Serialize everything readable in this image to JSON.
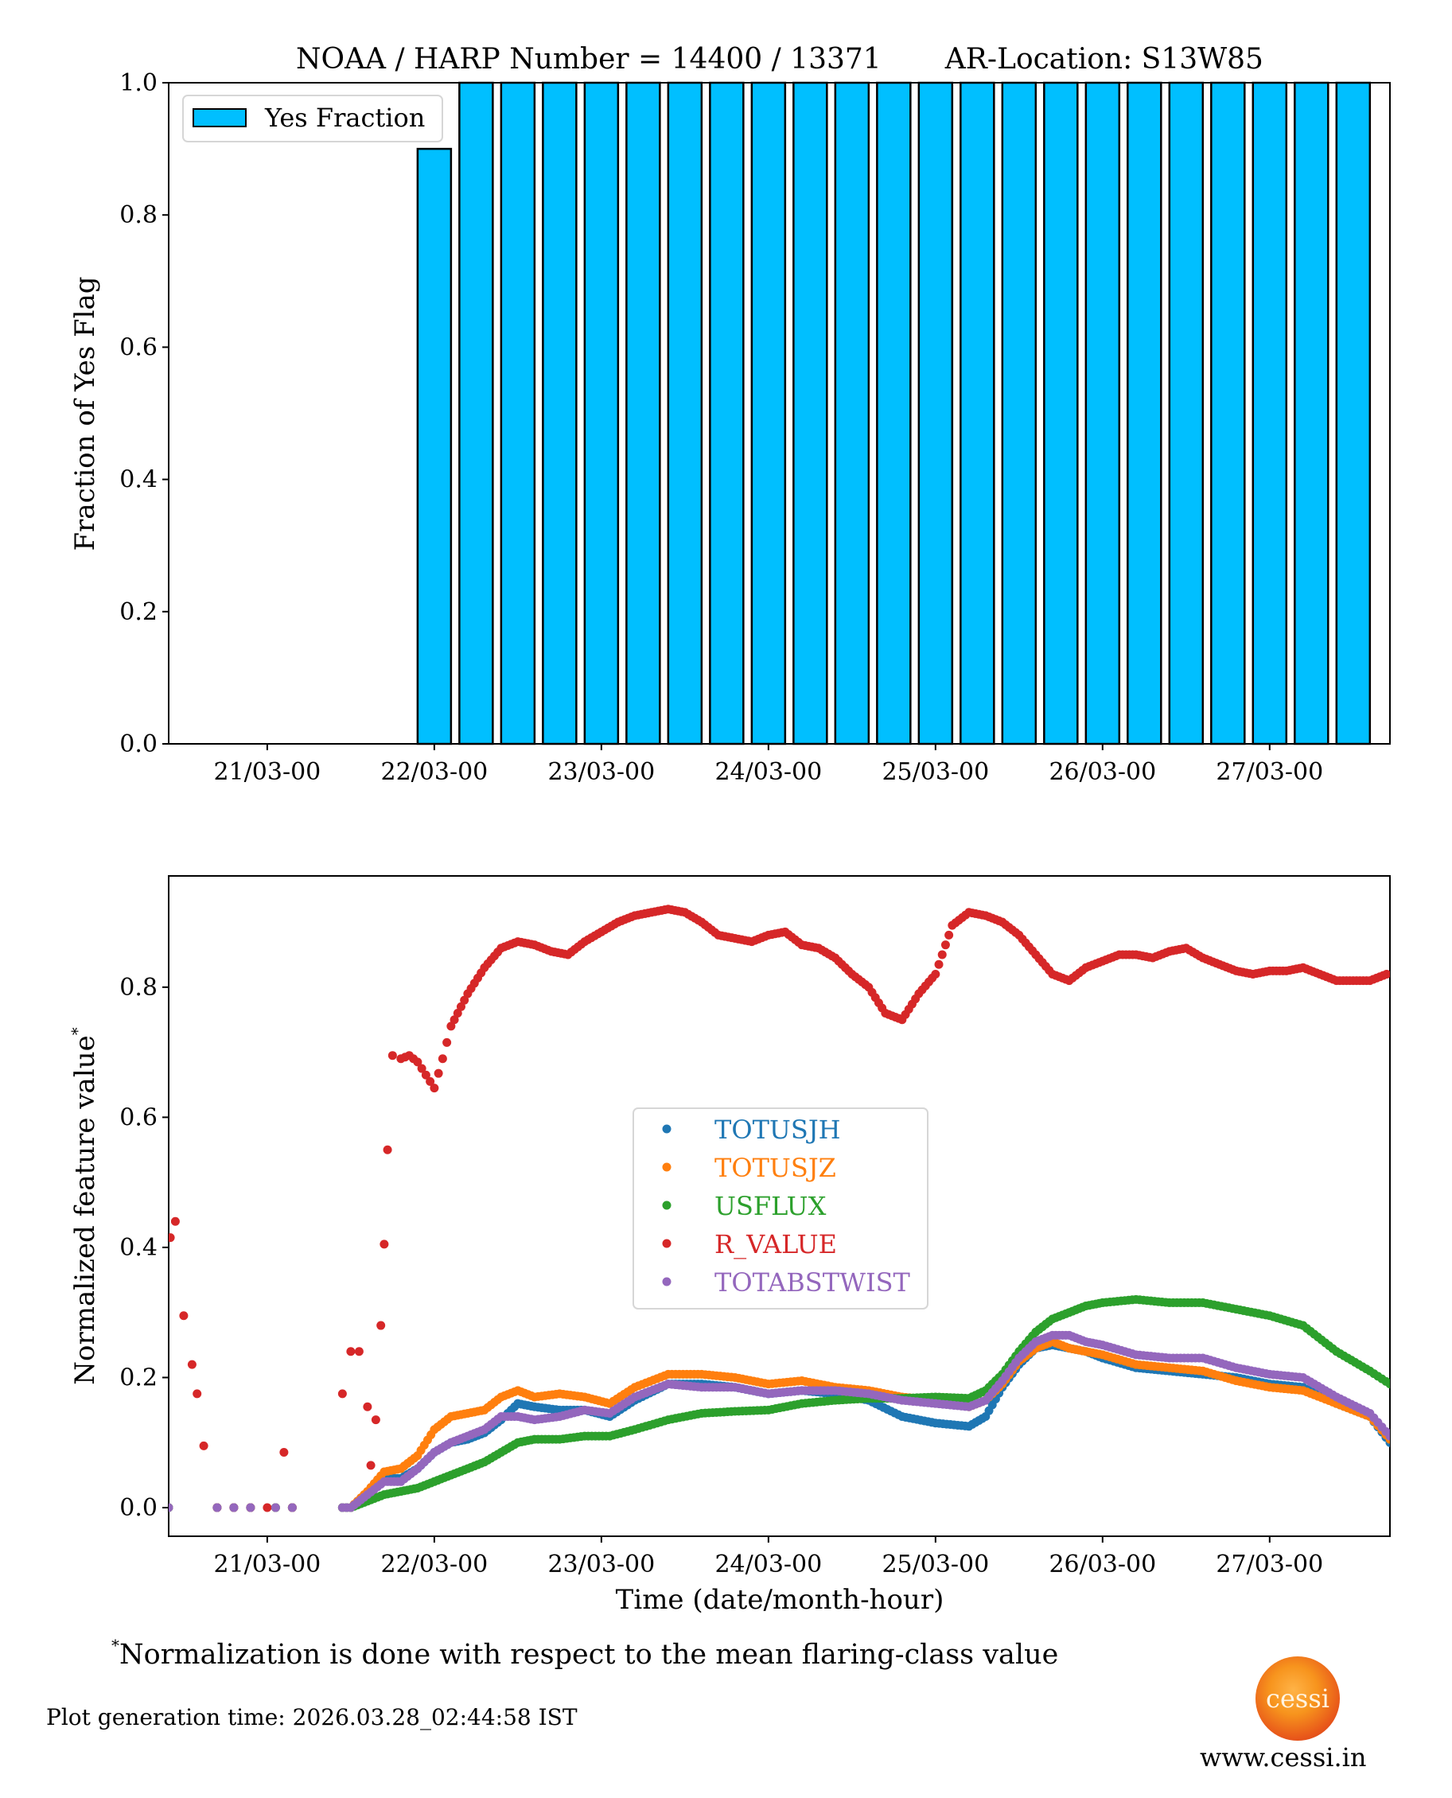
{
  "chart_data": [
    {
      "type": "bar",
      "title": "NOAA / HARP Number = 14400 / 13371       AR-Location: S13W85",
      "xlabel": "",
      "ylabel": "Fraction of Yes Flag",
      "ylim": [
        0.0,
        1.0
      ],
      "xlim_days": [
        -0.59,
        6.72
      ],
      "x_reference": "21/03-00 = day 0",
      "yticks": [
        "0.0",
        "0.2",
        "0.4",
        "0.6",
        "0.8",
        "1.0"
      ],
      "ytick_values": [
        0.0,
        0.2,
        0.4,
        0.6,
        0.8,
        1.0
      ],
      "xticks": [
        "21/03-00",
        "22/03-00",
        "23/03-00",
        "24/03-00",
        "25/03-00",
        "26/03-00",
        "27/03-00"
      ],
      "xtick_days": [
        0,
        1,
        2,
        3,
        4,
        5,
        6
      ],
      "bar_width_days": 0.2,
      "bar_x_days": [
        1.0,
        1.25,
        1.5,
        1.75,
        2.0,
        2.25,
        2.5,
        2.75,
        3.0,
        3.25,
        3.5,
        3.75,
        4.0,
        4.25,
        4.5,
        4.75,
        5.0,
        5.25,
        5.5,
        5.75,
        6.0,
        6.25,
        6.5
      ],
      "values": [
        0.9,
        1.0,
        1.0,
        1.0,
        1.0,
        1.0,
        1.0,
        1.0,
        1.0,
        1.0,
        1.0,
        1.0,
        1.0,
        1.0,
        1.0,
        1.0,
        1.0,
        1.0,
        1.0,
        1.0,
        1.0,
        1.0,
        1.0
      ],
      "legend": {
        "label": "Yes Fraction",
        "placement": "top-left"
      },
      "colors": {
        "bar": "#00bfff",
        "edge": "#000000"
      }
    },
    {
      "type": "scatter",
      "xlabel": "Time (date/month-hour)",
      "ylabel": "Normalized feature value*",
      "ylim": [
        -0.044,
        0.971
      ],
      "xlim_days": [
        -0.59,
        6.72
      ],
      "yticks": [
        "0.0",
        "0.2",
        "0.4",
        "0.6",
        "0.8"
      ],
      "ytick_values": [
        0.0,
        0.2,
        0.4,
        0.6,
        0.8
      ],
      "xticks": [
        "21/03-00",
        "22/03-00",
        "23/03-00",
        "24/03-00",
        "25/03-00",
        "26/03-00",
        "27/03-00"
      ],
      "xtick_days": [
        0,
        1,
        2,
        3,
        4,
        5,
        6
      ],
      "legend_placement": "center",
      "series": [
        {
          "name": "TOTUSJH",
          "color": "#1f77b4",
          "x": [
            -0.59,
            -0.3,
            -0.2,
            -0.1,
            0.05,
            0.15,
            0.45,
            0.5,
            0.6,
            0.7,
            0.8,
            0.9,
            1.0,
            1.1,
            1.2,
            1.3,
            1.4,
            1.5,
            1.6,
            1.75,
            1.9,
            2.05,
            2.2,
            2.4,
            2.6,
            2.8,
            3.0,
            3.2,
            3.4,
            3.6,
            3.8,
            4.0,
            4.2,
            4.3,
            4.4,
            4.5,
            4.6,
            4.7,
            4.8,
            4.9,
            5.0,
            5.2,
            5.4,
            5.6,
            5.8,
            6.0,
            6.2,
            6.4,
            6.6,
            6.72
          ],
          "y": [
            0.0,
            0.0,
            0.0,
            0.0,
            0.0,
            0.0,
            0.0,
            0.0,
            0.02,
            0.045,
            0.045,
            0.06,
            0.085,
            0.1,
            0.105,
            0.115,
            0.135,
            0.16,
            0.155,
            0.15,
            0.15,
            0.14,
            0.165,
            0.19,
            0.19,
            0.185,
            0.175,
            0.18,
            0.175,
            0.165,
            0.14,
            0.13,
            0.125,
            0.14,
            0.185,
            0.22,
            0.245,
            0.25,
            0.245,
            0.24,
            0.23,
            0.215,
            0.21,
            0.205,
            0.2,
            0.19,
            0.185,
            0.16,
            0.14,
            0.1
          ]
        },
        {
          "name": "TOTUSJZ",
          "color": "#ff7f0e",
          "x": [
            -0.59,
            -0.3,
            -0.2,
            -0.1,
            0.05,
            0.15,
            0.45,
            0.5,
            0.6,
            0.7,
            0.8,
            0.9,
            1.0,
            1.1,
            1.2,
            1.3,
            1.4,
            1.5,
            1.6,
            1.75,
            1.9,
            2.05,
            2.2,
            2.4,
            2.6,
            2.8,
            3.0,
            3.2,
            3.4,
            3.6,
            3.8,
            4.0,
            4.2,
            4.3,
            4.4,
            4.5,
            4.6,
            4.7,
            4.8,
            4.9,
            5.0,
            5.2,
            5.4,
            5.6,
            5.8,
            6.0,
            6.2,
            6.4,
            6.6,
            6.72
          ],
          "y": [
            0.0,
            0.0,
            0.0,
            0.0,
            0.0,
            0.0,
            0.0,
            0.0,
            0.025,
            0.055,
            0.06,
            0.08,
            0.12,
            0.14,
            0.145,
            0.15,
            0.17,
            0.18,
            0.17,
            0.175,
            0.17,
            0.16,
            0.185,
            0.205,
            0.205,
            0.2,
            0.19,
            0.195,
            0.185,
            0.18,
            0.17,
            0.165,
            0.155,
            0.165,
            0.19,
            0.225,
            0.245,
            0.255,
            0.245,
            0.24,
            0.235,
            0.22,
            0.215,
            0.21,
            0.195,
            0.185,
            0.18,
            0.16,
            0.14,
            0.105
          ]
        },
        {
          "name": "USFLUX",
          "color": "#2ca02c",
          "x": [
            -0.59,
            -0.3,
            -0.2,
            -0.1,
            0.05,
            0.15,
            0.45,
            0.5,
            0.6,
            0.7,
            0.8,
            0.9,
            1.0,
            1.1,
            1.2,
            1.3,
            1.4,
            1.5,
            1.6,
            1.75,
            1.9,
            2.05,
            2.2,
            2.4,
            2.6,
            2.8,
            3.0,
            3.2,
            3.4,
            3.6,
            3.8,
            4.0,
            4.2,
            4.3,
            4.4,
            4.5,
            4.6,
            4.7,
            4.8,
            4.9,
            5.0,
            5.2,
            5.4,
            5.6,
            5.8,
            6.0,
            6.2,
            6.4,
            6.6,
            6.72
          ],
          "y": [
            0.0,
            0.0,
            0.0,
            0.0,
            0.0,
            0.0,
            0.0,
            0.0,
            0.01,
            0.02,
            0.025,
            0.03,
            0.04,
            0.05,
            0.06,
            0.07,
            0.085,
            0.1,
            0.105,
            0.105,
            0.11,
            0.11,
            0.12,
            0.135,
            0.145,
            0.148,
            0.15,
            0.16,
            0.165,
            0.168,
            0.168,
            0.17,
            0.168,
            0.18,
            0.205,
            0.24,
            0.27,
            0.29,
            0.3,
            0.31,
            0.315,
            0.32,
            0.315,
            0.315,
            0.305,
            0.295,
            0.28,
            0.24,
            0.21,
            0.19
          ]
        },
        {
          "name": "R_VALUE",
          "color": "#d62728",
          "x": [
            -0.58,
            -0.55,
            -0.5,
            -0.45,
            -0.42,
            -0.38,
            -0.3,
            -0.2,
            -0.1,
            0.0,
            0.1,
            0.15,
            0.45,
            0.5,
            0.55,
            0.6,
            0.62,
            0.65,
            0.68,
            0.7,
            0.72,
            0.75,
            0.8,
            0.85,
            0.9,
            0.95,
            1.0,
            1.05,
            1.1,
            1.2,
            1.3,
            1.4,
            1.5,
            1.6,
            1.7,
            1.8,
            1.9,
            2.0,
            2.1,
            2.2,
            2.3,
            2.4,
            2.5,
            2.6,
            2.7,
            2.8,
            2.9,
            3.0,
            3.1,
            3.2,
            3.3,
            3.4,
            3.5,
            3.6,
            3.7,
            3.8,
            3.9,
            4.0,
            4.1,
            4.2,
            4.3,
            4.4,
            4.5,
            4.6,
            4.7,
            4.8,
            4.9,
            5.0,
            5.1,
            5.2,
            5.3,
            5.4,
            5.5,
            5.6,
            5.7,
            5.8,
            5.9,
            6.0,
            6.1,
            6.2,
            6.3,
            6.4,
            6.5,
            6.6,
            6.7
          ],
          "y": [
            0.415,
            0.44,
            0.295,
            0.22,
            0.175,
            0.095,
            0.0,
            0.0,
            0.0,
            0.0,
            0.085,
            0.0,
            0.175,
            0.24,
            0.24,
            0.155,
            0.065,
            0.135,
            0.28,
            0.405,
            0.55,
            0.695,
            0.69,
            0.695,
            0.685,
            0.665,
            0.645,
            0.69,
            0.74,
            0.79,
            0.83,
            0.86,
            0.87,
            0.865,
            0.855,
            0.85,
            0.87,
            0.885,
            0.9,
            0.91,
            0.915,
            0.92,
            0.915,
            0.9,
            0.88,
            0.875,
            0.87,
            0.88,
            0.885,
            0.865,
            0.86,
            0.845,
            0.82,
            0.8,
            0.76,
            0.75,
            0.79,
            0.82,
            0.895,
            0.915,
            0.91,
            0.9,
            0.88,
            0.85,
            0.82,
            0.81,
            0.83,
            0.84,
            0.85,
            0.85,
            0.845,
            0.855,
            0.86,
            0.845,
            0.835,
            0.825,
            0.82,
            0.825,
            0.825,
            0.83,
            0.82,
            0.81,
            0.81,
            0.81,
            0.82
          ]
        },
        {
          "name": "TOTABSTWIST",
          "color": "#9467bd",
          "x": [
            -0.59,
            -0.3,
            -0.2,
            -0.1,
            0.05,
            0.15,
            0.45,
            0.5,
            0.6,
            0.7,
            0.8,
            0.9,
            1.0,
            1.1,
            1.2,
            1.3,
            1.4,
            1.5,
            1.6,
            1.75,
            1.9,
            2.05,
            2.2,
            2.4,
            2.6,
            2.8,
            3.0,
            3.2,
            3.4,
            3.6,
            3.8,
            4.0,
            4.2,
            4.3,
            4.4,
            4.5,
            4.6,
            4.7,
            4.8,
            4.9,
            5.0,
            5.2,
            5.4,
            5.6,
            5.8,
            6.0,
            6.2,
            6.4,
            6.6,
            6.72
          ],
          "y": [
            0.0,
            0.0,
            0.0,
            0.0,
            0.0,
            0.0,
            0.0,
            0.0,
            0.02,
            0.04,
            0.04,
            0.06,
            0.085,
            0.1,
            0.11,
            0.12,
            0.14,
            0.14,
            0.135,
            0.14,
            0.15,
            0.145,
            0.17,
            0.19,
            0.185,
            0.185,
            0.175,
            0.18,
            0.18,
            0.175,
            0.165,
            0.16,
            0.155,
            0.165,
            0.195,
            0.23,
            0.255,
            0.265,
            0.265,
            0.255,
            0.25,
            0.235,
            0.23,
            0.23,
            0.215,
            0.205,
            0.2,
            0.17,
            0.145,
            0.11
          ]
        }
      ]
    }
  ],
  "footer": {
    "footnote_mark": "*",
    "footnote": "Normalization is done with respect to the mean flaring-class value",
    "generation_time": "Plot generation time: 2026.03.28_02:44:58 IST",
    "logo_text": "cessi",
    "url": "www.cessi.in"
  }
}
